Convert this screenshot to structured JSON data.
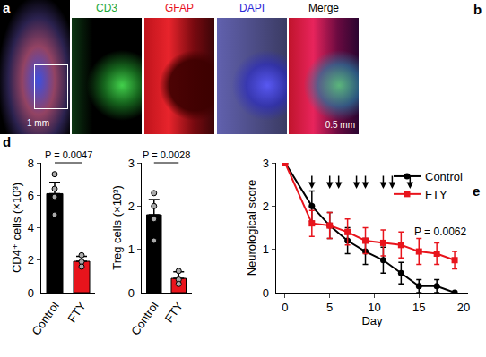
{
  "panel_labels": [
    "a",
    "b",
    "d",
    "e"
  ],
  "images": {
    "channels": [
      {
        "label": "CD3",
        "color": "#22a83a"
      },
      {
        "label": "GFAP",
        "color": "#e8141c"
      },
      {
        "label": "DAPI",
        "color": "#2a2ad8"
      },
      {
        "label": "Merge",
        "color": "#000000"
      }
    ],
    "scale_bars": [
      "1 mm",
      "0.5 mm"
    ]
  },
  "chart_data": [
    {
      "type": "bar",
      "categories": [
        "Control",
        "FTY"
      ],
      "values": [
        6.1,
        1.93
      ],
      "errors": [
        0.7,
        0.3
      ],
      "points": [
        [
          7.3,
          6.4,
          5.9,
          4.8
        ],
        [
          2.3,
          1.9,
          1.6
        ]
      ],
      "colors": [
        "#000000",
        "#e8141c"
      ],
      "y_label": "CD4⁺ cells (×10³)",
      "ylim": [
        0,
        8
      ],
      "yticks": [
        0,
        2,
        4,
        6,
        8
      ],
      "annotations": [
        "P = 0.0047"
      ]
    },
    {
      "type": "bar",
      "categories": [
        "Control",
        "FTY"
      ],
      "values": [
        1.8,
        0.33
      ],
      "errors": [
        0.35,
        0.15
      ],
      "points": [
        [
          2.3,
          2.0,
          1.7,
          1.2
        ],
        [
          0.5,
          0.3,
          0.2
        ]
      ],
      "colors": [
        "#000000",
        "#e8141c"
      ],
      "y_label": "Treg cells (×10³)",
      "ylim": [
        0,
        3
      ],
      "yticks": [
        0,
        1,
        2,
        3
      ],
      "annotations": [
        "P = 0.0028"
      ]
    },
    {
      "type": "line",
      "x": [
        0,
        3,
        5,
        7,
        9,
        11,
        13,
        15,
        17,
        19
      ],
      "series": [
        {
          "name": "Control",
          "color": "#000000",
          "marker": "circle",
          "values": [
            3,
            2.0,
            1.55,
            1.2,
            0.95,
            0.75,
            0.45,
            0.15,
            0.15,
            0
          ],
          "errors": [
            0,
            0.35,
            0.3,
            0.3,
            0.3,
            0.3,
            0.25,
            0.15,
            0.15,
            0
          ]
        },
        {
          "name": "FTY",
          "color": "#e8141c",
          "marker": "square",
          "values": [
            3,
            1.6,
            1.55,
            1.4,
            1.2,
            1.15,
            1.1,
            0.95,
            0.9,
            0.75
          ],
          "errors": [
            0,
            0.3,
            0.3,
            0.3,
            0.3,
            0.3,
            0.3,
            0.3,
            0.25,
            0.2
          ]
        }
      ],
      "x_label": "Day",
      "y_label": "Neurological score",
      "xlim": [
        -1,
        20.5
      ],
      "xticks": [
        0,
        5,
        10,
        15,
        20
      ],
      "ylim": [
        0,
        3
      ],
      "yticks": [
        0,
        1,
        2,
        3
      ],
      "legend": "upper right",
      "arrow_days": [
        3,
        5,
        6,
        8,
        9,
        11,
        12,
        14
      ],
      "annotations": [
        "P = 0.0062"
      ]
    }
  ]
}
